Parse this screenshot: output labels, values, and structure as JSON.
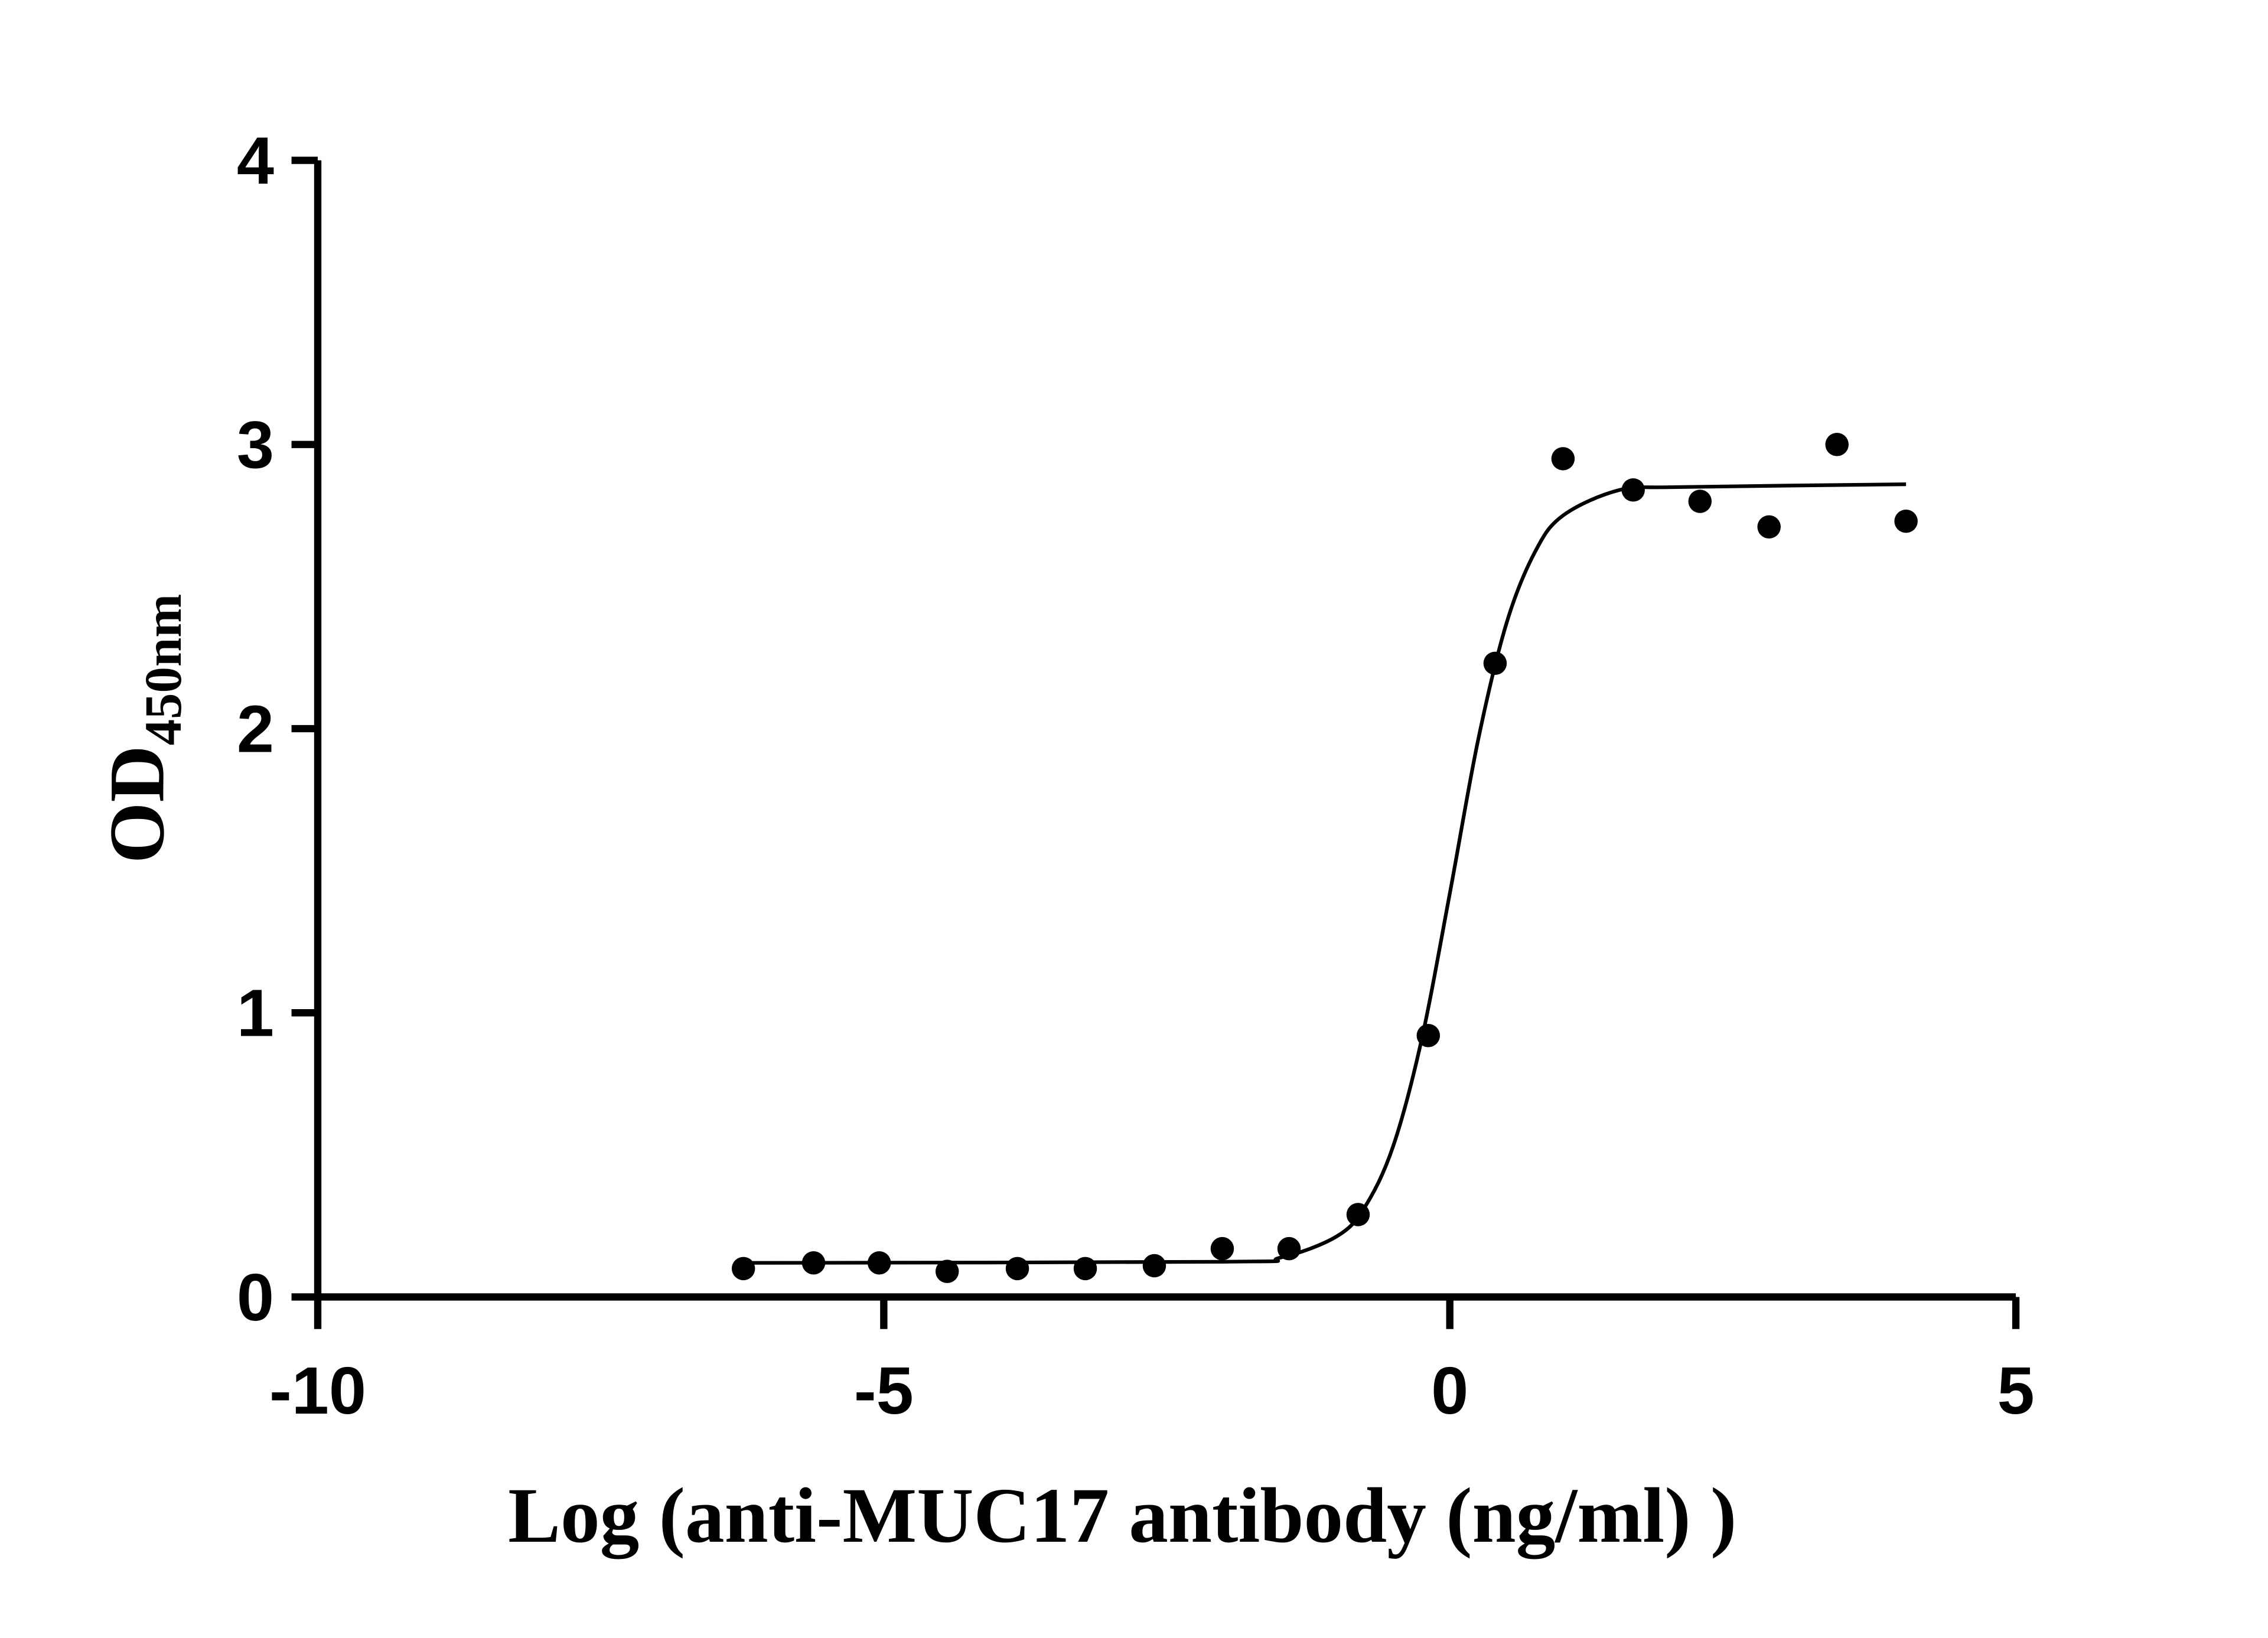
{
  "chart_data": {
    "type": "scatter",
    "x_label": "Log (anti-MUC17 antibody (ng/ml)  )",
    "y_label": {
      "main": "OD",
      "sub": "450nm"
    },
    "x": [
      -6.24,
      -5.62,
      -5.04,
      -4.44,
      -3.82,
      -3.22,
      -2.61,
      -2.01,
      -1.42,
      -0.81,
      -0.19,
      0.4,
      1.0,
      1.62,
      2.21,
      2.82,
      3.42,
      4.03
    ],
    "values": [
      0.1,
      0.12,
      0.12,
      0.09,
      0.1,
      0.1,
      0.11,
      0.17,
      0.17,
      0.29,
      0.92,
      2.23,
      2.95,
      2.84,
      2.8,
      2.71,
      3.0,
      2.73
    ],
    "color": "#000000",
    "curve": {
      "x": [
        -6.24,
        -2,
        -1.5,
        -1,
        -0.75,
        -0.5,
        -0.25,
        0,
        0.25,
        0.5,
        0.75,
        1,
        1.5,
        2,
        4.03
      ],
      "y": [
        0.12,
        0.124,
        0.138,
        0.213,
        0.317,
        0.531,
        0.904,
        1.42,
        1.96,
        2.37,
        2.62,
        2.75,
        2.84,
        2.85,
        2.86
      ]
    },
    "xlim": [
      -10,
      5
    ],
    "xticks": [
      -10,
      -5,
      0,
      5
    ],
    "ylim": [
      0,
      4
    ],
    "yticks": [
      0,
      1,
      2,
      3,
      4
    ],
    "grid": false
  }
}
